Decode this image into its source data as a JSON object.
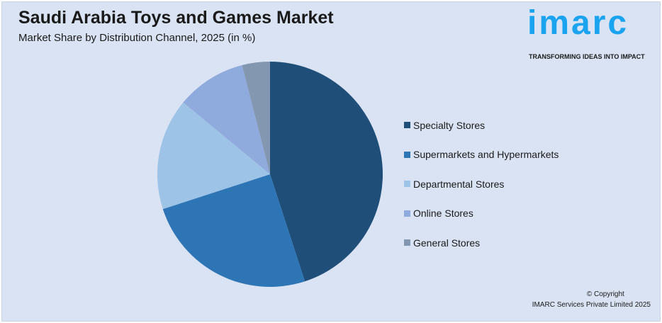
{
  "header": {
    "title": "Saudi Arabia Toys and Games Market",
    "subtitle": "Market Share by Distribution Channel, 2025 (in %)"
  },
  "logo": {
    "word": "imarc",
    "tagline": "TRANSFORMING IDEAS INTO IMPACT",
    "color": "#1aa3ef"
  },
  "chart_data": {
    "type": "pie",
    "title": "Saudi Arabia Toys and Games Market",
    "subtitle": "Market Share by Distribution Channel, 2025 (in %)",
    "legend_position": "right",
    "categories": [
      "Specialty Stores",
      "Supermarkets and Hypermarkets",
      "Departmental Stores",
      "Online Stores",
      "General Stores"
    ],
    "values": [
      45,
      25,
      16,
      10,
      4
    ],
    "colors": [
      "#1f4e79",
      "#2e75b6",
      "#9dc3e6",
      "#8faadc",
      "#8497b0"
    ]
  },
  "footer": {
    "copyright": "© Copyright",
    "company": "IMARC Services Private Limited 2025"
  }
}
